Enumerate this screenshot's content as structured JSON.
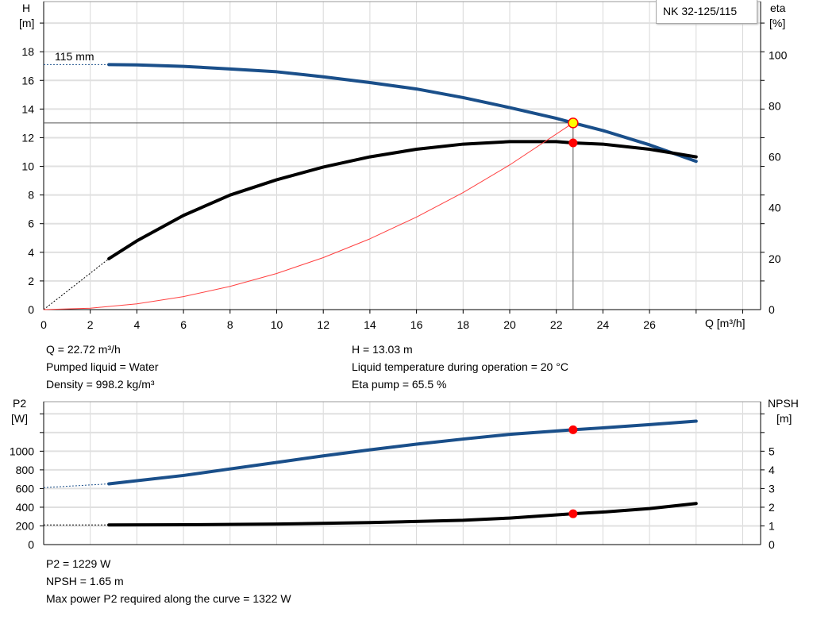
{
  "chart_data": [
    {
      "type": "line",
      "title": "NK 32-125/115",
      "xlabel": "Q [m³/h]",
      "ylabel": "H [m]",
      "y2label": "eta [%]",
      "xlim": [
        0,
        30
      ],
      "ylim": [
        0,
        21.5
      ],
      "y2lim": [
        0,
        121
      ],
      "xticks": [
        0,
        2,
        4,
        6,
        8,
        10,
        12,
        14,
        16,
        18,
        20,
        22,
        24,
        26
      ],
      "yticks": [
        0,
        2,
        4,
        6,
        8,
        10,
        12,
        14,
        16,
        18
      ],
      "y2ticks": [
        0,
        20,
        40,
        60,
        80,
        100
      ],
      "grid": true,
      "curve_label": "115 mm",
      "series": [
        {
          "name": "H",
          "axis": "left",
          "color": "#1a4f8a",
          "dashed_start": [
            [
              0,
              17.1
            ],
            [
              2.8,
              17.1
            ]
          ],
          "x": [
            2.8,
            4,
            6,
            8,
            10,
            12,
            14,
            16,
            18,
            20,
            22,
            22.72,
            24,
            26,
            28
          ],
          "y": [
            17.1,
            17.08,
            16.98,
            16.8,
            16.6,
            16.25,
            15.85,
            15.4,
            14.8,
            14.1,
            13.35,
            13.03,
            12.5,
            11.5,
            10.35
          ]
        },
        {
          "name": "eta",
          "axis": "right",
          "color": "#000000",
          "dashed_start": [
            [
              0,
              0
            ],
            [
              2.8,
              20
            ]
          ],
          "x": [
            2.8,
            4,
            6,
            8,
            10,
            12,
            14,
            16,
            18,
            20,
            22,
            22.72,
            24,
            26,
            28
          ],
          "y": [
            20,
            27,
            37,
            45,
            51,
            56,
            60,
            63,
            65,
            66,
            66,
            65.5,
            65,
            63,
            60
          ]
        },
        {
          "axis": "left",
          "color": "#ff4040",
          "thin": true,
          "x": [
            0,
            2,
            4,
            6,
            8,
            10,
            12,
            14,
            16,
            18,
            20,
            22.72
          ],
          "y": [
            0,
            0.1,
            0.4,
            0.91,
            1.62,
            2.52,
            3.63,
            4.94,
            6.46,
            8.17,
            10.1,
            13.03
          ]
        }
      ],
      "operating_point": {
        "Q": 22.72,
        "H": 13.03,
        "eta": 65.5
      }
    },
    {
      "type": "line",
      "ylabel": "P2 [W]",
      "y2label": "NPSH [m]",
      "xlim": [
        0,
        30
      ],
      "ylim": [
        0,
        1530
      ],
      "y2lim": [
        0,
        7.65
      ],
      "yticks": [
        0,
        200,
        400,
        600,
        800,
        1000
      ],
      "y2ticks": [
        0,
        1,
        2,
        3,
        4,
        5
      ],
      "grid": true,
      "series": [
        {
          "name": "P2",
          "axis": "left",
          "color": "#1a4f8a",
          "dashed_start": [
            [
              0,
              610
            ],
            [
              2.8,
              650
            ]
          ],
          "x": [
            2.8,
            6,
            8,
            10,
            12,
            14,
            16,
            18,
            20,
            22.72,
            24,
            26,
            28
          ],
          "y": [
            650,
            740,
            810,
            880,
            950,
            1015,
            1075,
            1130,
            1180,
            1229,
            1250,
            1285,
            1322
          ]
        },
        {
          "name": "NPSH",
          "axis": "right",
          "color": "#000000",
          "dashed_start": [
            [
              0,
              1.05
            ],
            [
              2.8,
              1.05
            ]
          ],
          "x": [
            2.8,
            6,
            10,
            14,
            18,
            20,
            22.72,
            24,
            26,
            28
          ],
          "y": [
            1.05,
            1.06,
            1.1,
            1.18,
            1.3,
            1.42,
            1.65,
            1.74,
            1.93,
            2.2
          ]
        }
      ],
      "operating_point": {
        "Q": 22.72,
        "P2": 1229,
        "NPSH": 1.65
      }
    }
  ],
  "info1": {
    "q": "Q = 22.72 m³/h",
    "liquid": "Pumped liquid = Water",
    "density": "Density = 998.2 kg/m³",
    "h": "H = 13.03 m",
    "temp": "Liquid temperature during operation = 20 °C",
    "eta": "Eta pump = 65.5 %"
  },
  "info2": {
    "p2": "P2 = 1229 W",
    "npsh": "NPSH = 1.65 m",
    "maxp": "Max power P2 required along the curve = 1322 W"
  },
  "labels": {
    "h": "H",
    "h_unit": "[m]",
    "eta": "eta",
    "eta_unit": "[%]",
    "q": "Q [m³/h]",
    "p2": "P2",
    "p2_unit": "[W]",
    "npsh": "NPSH",
    "npsh_unit": "[m]"
  }
}
